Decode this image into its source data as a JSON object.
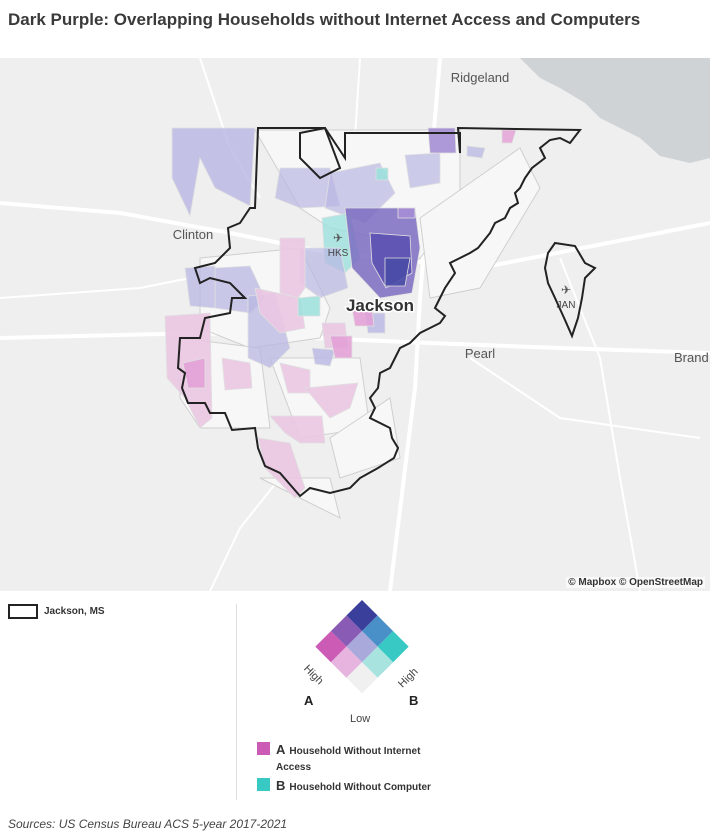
{
  "title": "Dark Purple: Overlapping Households without Internet Access and Computers",
  "map": {
    "places": {
      "ridgeland": "Ridgeland",
      "clinton": "Clinton",
      "jackson": "Jackson",
      "pearl": "Pearl",
      "brandon": "Brand",
      "hks": "HKS",
      "jan": "JAN"
    },
    "attribution": "© Mapbox © OpenStreetMap"
  },
  "legend": {
    "boundary_label": "Jackson, MS",
    "axis_high_left": "High",
    "axis_high_right": "High",
    "axis_low": "Low",
    "a_letter": "A",
    "b_letter": "B",
    "key_a_letter": "A",
    "key_a_label": "Household Without Internet Access",
    "key_b_letter": "B",
    "key_b_label": "Household Without Computer",
    "colors": {
      "a_high": "#cc5bb5",
      "b_high": "#39c9c4",
      "both_high": "#3b3f9c",
      "low": "#f0f0f0"
    }
  },
  "sources": "Sources: US Census Bureau ACS 5-year 2017-2021"
}
